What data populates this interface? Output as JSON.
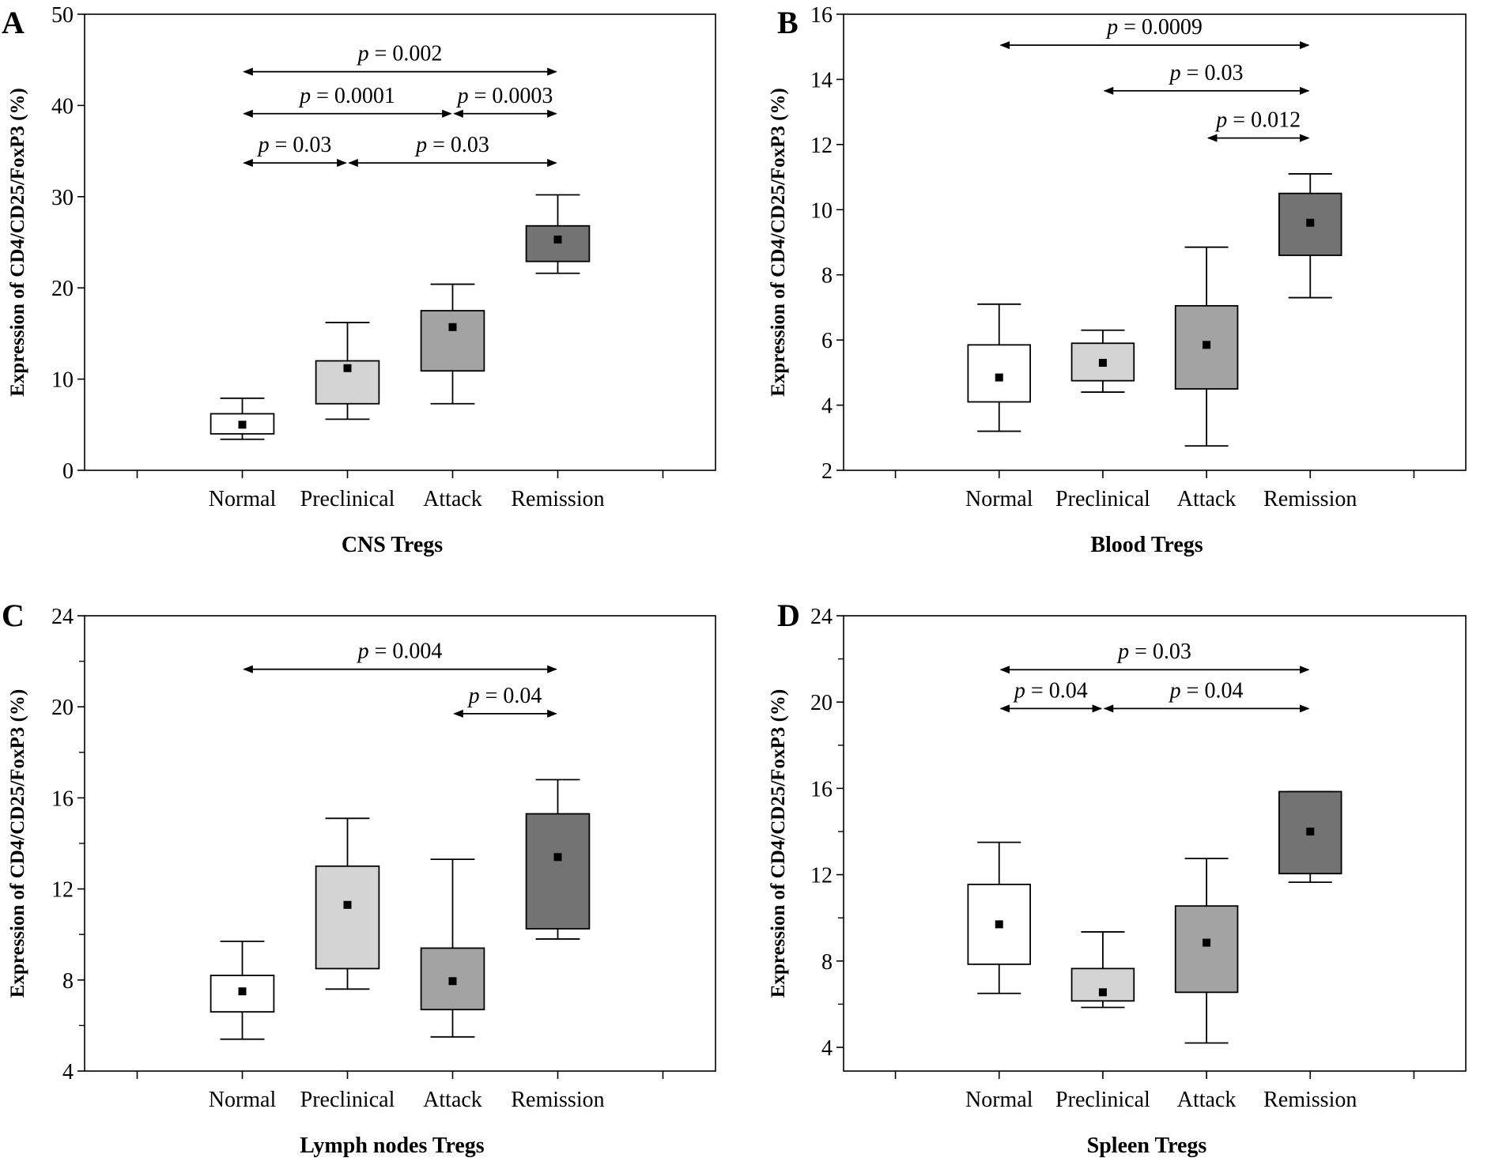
{
  "chart_data": [
    {
      "type": "box",
      "panel": "A",
      "title": "",
      "xlabel": "CNS Tregs",
      "ylabel": "Expression of CD4/CD25/FoxP3 (%)",
      "ylim": [
        0,
        50
      ],
      "yticks": [
        0,
        10,
        20,
        30,
        40,
        50
      ],
      "yminor_ticks": [],
      "grid": false,
      "categories": [
        "Normal",
        "Preclinical",
        "Attack",
        "Remission"
      ],
      "boxes": [
        {
          "category": "Normal",
          "whisker_low": 3.4,
          "q1": 4.0,
          "q3": 6.2,
          "whisker_high": 7.9,
          "mean": 5.0,
          "fill": "#ffffff"
        },
        {
          "category": "Preclinical",
          "whisker_low": 5.6,
          "q1": 7.3,
          "q3": 12.0,
          "whisker_high": 16.2,
          "mean": 11.2,
          "fill": "#d4d4d4"
        },
        {
          "category": "Attack",
          "whisker_low": 7.3,
          "q1": 10.9,
          "q3": 17.5,
          "whisker_high": 20.4,
          "mean": 15.7,
          "fill": "#a3a3a3"
        },
        {
          "category": "Remission",
          "whisker_low": 21.6,
          "q1": 22.9,
          "q3": 26.8,
          "whisker_high": 30.2,
          "mean": 25.3,
          "fill": "#737373"
        }
      ],
      "annotations": [
        {
          "from": "Normal",
          "to": "Remission",
          "y": 43.7,
          "label": "0.002"
        },
        {
          "from": "Normal",
          "to": "Attack",
          "y": 39.1,
          "label": "0.0001"
        },
        {
          "from": "Attack",
          "to": "Remission",
          "y": 39.1,
          "label": "0.0003"
        },
        {
          "from": "Normal",
          "to": "Preclinical",
          "y": 33.7,
          "label": "0.03"
        },
        {
          "from": "Preclinical",
          "to": "Remission",
          "y": 33.7,
          "label": "0.03"
        }
      ]
    },
    {
      "type": "box",
      "panel": "B",
      "title": "",
      "xlabel": "Blood Tregs",
      "ylabel": "Expression of CD4/CD25/FoxP3 (%)",
      "ylim": [
        2,
        16
      ],
      "yticks": [
        2,
        4,
        6,
        8,
        10,
        12,
        14,
        16
      ],
      "yminor_ticks": [],
      "grid": false,
      "categories": [
        "Normal",
        "Preclinical",
        "Attack",
        "Remission"
      ],
      "boxes": [
        {
          "category": "Normal",
          "whisker_low": 3.2,
          "q1": 4.1,
          "q3": 5.85,
          "whisker_high": 7.1,
          "mean": 4.85,
          "fill": "#ffffff"
        },
        {
          "category": "Preclinical",
          "whisker_low": 4.4,
          "q1": 4.75,
          "q3": 5.9,
          "whisker_high": 6.3,
          "mean": 5.3,
          "fill": "#d4d4d4"
        },
        {
          "category": "Attack",
          "whisker_low": 2.75,
          "q1": 4.5,
          "q3": 7.05,
          "whisker_high": 8.85,
          "mean": 5.85,
          "fill": "#a3a3a3"
        },
        {
          "category": "Remission",
          "whisker_low": 7.3,
          "q1": 8.6,
          "q3": 10.5,
          "whisker_high": 11.1,
          "mean": 9.6,
          "fill": "#737373"
        }
      ],
      "annotations": [
        {
          "from": "Normal",
          "to": "Remission",
          "y": 15.05,
          "label": "0.0009"
        },
        {
          "from": "Preclinical",
          "to": "Remission",
          "y": 13.65,
          "label": "0.03"
        },
        {
          "from": "Attack",
          "to": "Remission",
          "y": 12.2,
          "label": "0.012"
        }
      ]
    },
    {
      "type": "box",
      "panel": "C",
      "title": "",
      "xlabel": "Lymph nodes Tregs",
      "ylabel": "Expression of CD4/CD25/FoxP3 (%)",
      "ylim": [
        4,
        24
      ],
      "yticks": [
        4,
        8,
        12,
        16,
        20,
        24
      ],
      "yminor_ticks": [
        6,
        10,
        14,
        18,
        22
      ],
      "grid": false,
      "categories": [
        "Normal",
        "Preclinical",
        "Attack",
        "Remission"
      ],
      "boxes": [
        {
          "category": "Normal",
          "whisker_low": 5.4,
          "q1": 6.6,
          "q3": 8.2,
          "whisker_high": 9.7,
          "mean": 7.5,
          "fill": "#ffffff"
        },
        {
          "category": "Preclinical",
          "whisker_low": 7.6,
          "q1": 8.5,
          "q3": 13.0,
          "whisker_high": 15.1,
          "mean": 11.3,
          "fill": "#d4d4d4"
        },
        {
          "category": "Attack",
          "whisker_low": 5.5,
          "q1": 6.7,
          "q3": 9.4,
          "whisker_high": 13.3,
          "mean": 7.95,
          "fill": "#a3a3a3"
        },
        {
          "category": "Remission",
          "whisker_low": 9.8,
          "q1": 10.25,
          "q3": 15.3,
          "whisker_high": 16.8,
          "mean": 13.4,
          "fill": "#737373"
        }
      ],
      "annotations": [
        {
          "from": "Normal",
          "to": "Remission",
          "y": 21.65,
          "label": "0.004"
        },
        {
          "from": "Attack",
          "to": "Remission",
          "y": 19.7,
          "label": "0.04"
        }
      ]
    },
    {
      "type": "box",
      "panel": "D",
      "title": "",
      "xlabel": "Spleen Tregs",
      "ylabel": "Expression of CD4/CD25/FoxP3 (%)",
      "ylim": [
        2.9,
        24
      ],
      "yticks": [
        4,
        8,
        12,
        16,
        20,
        24
      ],
      "yminor_ticks": [
        6,
        10,
        14,
        18,
        22
      ],
      "grid": false,
      "categories": [
        "Normal",
        "Preclinical",
        "Attack",
        "Remission"
      ],
      "boxes": [
        {
          "category": "Normal",
          "whisker_low": 6.5,
          "q1": 7.85,
          "q3": 11.55,
          "whisker_high": 13.5,
          "mean": 9.7,
          "fill": "#ffffff"
        },
        {
          "category": "Preclinical",
          "whisker_low": 5.85,
          "q1": 6.15,
          "q3": 7.65,
          "whisker_high": 9.35,
          "mean": 6.55,
          "fill": "#d4d4d4"
        },
        {
          "category": "Attack",
          "whisker_low": 4.2,
          "q1": 6.55,
          "q3": 10.55,
          "whisker_high": 12.75,
          "mean": 8.85,
          "fill": "#a3a3a3"
        },
        {
          "category": "Remission",
          "whisker_low": 11.65,
          "q1": 12.05,
          "q3": 15.85,
          "whisker_high": 15.85,
          "mean": 14.0,
          "fill": "#737373"
        }
      ],
      "annotations": [
        {
          "from": "Normal",
          "to": "Remission",
          "y": 21.5,
          "label": "0.03"
        },
        {
          "from": "Normal",
          "to": "Preclinical",
          "y": 19.7,
          "label": "0.04"
        },
        {
          "from": "Preclinical",
          "to": "Remission",
          "y": 19.7,
          "label": "0.04"
        }
      ]
    }
  ],
  "p_prefix": "p",
  "p_equals": " = "
}
